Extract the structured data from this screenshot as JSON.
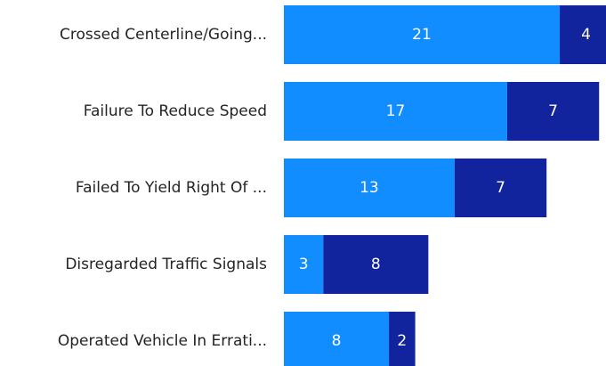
{
  "chart_data": {
    "type": "stacked_barh",
    "categories": [
      "Crossed Centerline/Going...",
      "Failure To Reduce Speed",
      "Failed To Yield Right Of ...",
      "Disregarded Traffic Signals",
      "Operated Vehicle In Errati..."
    ],
    "series": [
      {
        "color": "#118dff",
        "values": [
          21,
          17,
          13,
          3,
          8
        ]
      },
      {
        "color": "#12239e",
        "values": [
          4,
          7,
          7,
          8,
          2
        ]
      }
    ]
  }
}
